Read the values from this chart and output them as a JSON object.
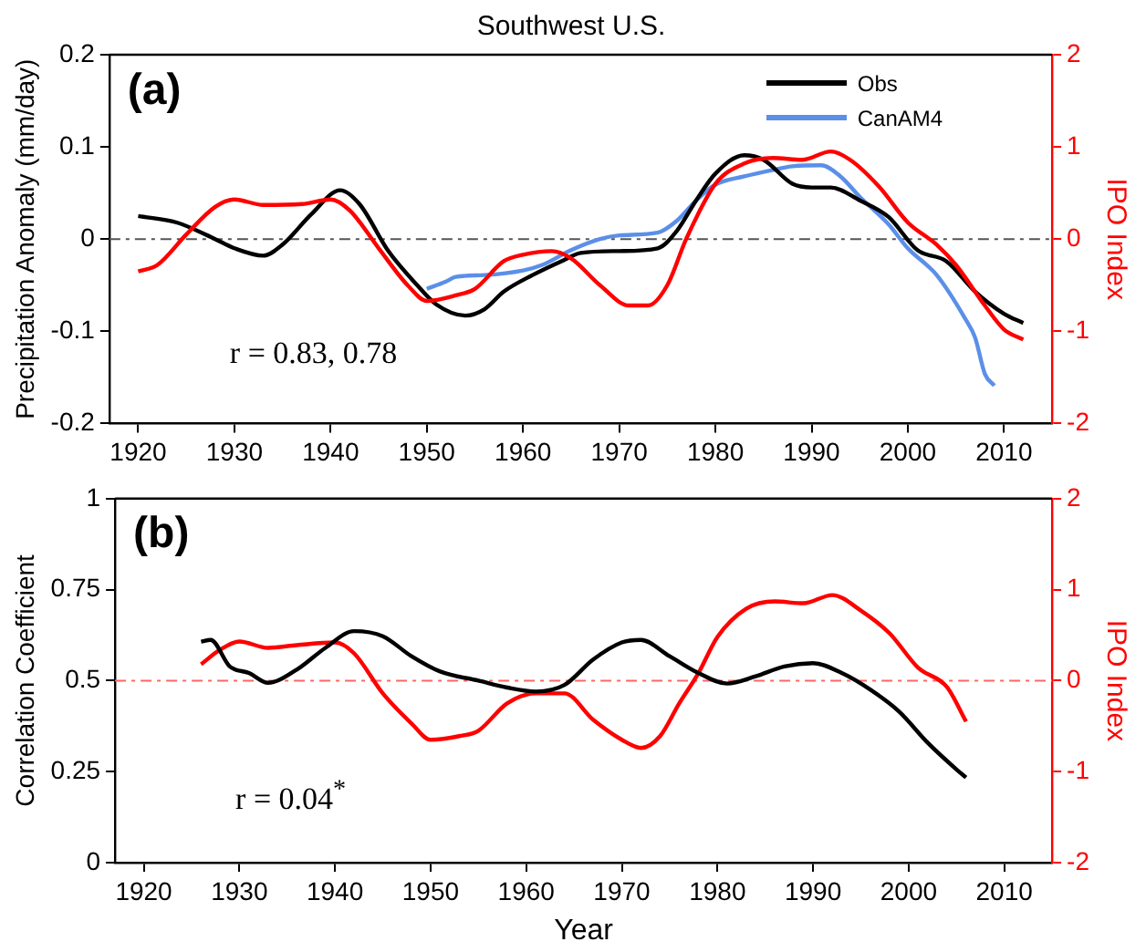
{
  "chart_data": [
    {
      "type": "line",
      "title": "Southwest U.S.",
      "ylabel": "Precipitation Anomaly (mm/day)",
      "y2label": "IPO Index",
      "legend": "top right",
      "marker": "none",
      "xlim": [
        1917,
        2015
      ],
      "xticks": [
        1920,
        1930,
        1940,
        1950,
        1960,
        1970,
        1980,
        1990,
        2000,
        2010
      ],
      "ylim": [
        -0.2,
        0.2
      ],
      "yticks": [
        -0.2,
        -0.1,
        0,
        0.1,
        0.2
      ],
      "y2lim": [
        -2,
        2
      ],
      "y2ticks": [
        -2,
        -1,
        0,
        1,
        2
      ],
      "ref_lines": [
        {
          "axis": "y",
          "value": 0,
          "color": "#555555",
          "line_style": "dashed"
        }
      ],
      "annotations": [
        "(a)",
        "r = 0.83, 0.78"
      ],
      "series": [
        {
          "type": "line",
          "axis": "y2",
          "color": "#ff0000",
          "x": [
            1920,
            1922,
            1925,
            1928,
            1930,
            1933,
            1937,
            1940,
            1942,
            1945,
            1948,
            1950,
            1953,
            1955,
            1958,
            1960,
            1963,
            1965,
            1968,
            1971,
            1973,
            1975,
            1977,
            1980,
            1983,
            1986,
            1989,
            1992,
            1994,
            1997,
            2000,
            2003,
            2005,
            2008,
            2010,
            2012
          ],
          "values": [
            -0.35,
            -0.28,
            0.05,
            0.35,
            0.43,
            0.37,
            0.38,
            0.43,
            0.31,
            -0.1,
            -0.5,
            -0.67,
            -0.61,
            -0.54,
            -0.24,
            -0.17,
            -0.13,
            -0.21,
            -0.5,
            -0.72,
            -0.72,
            -0.5,
            0.01,
            0.6,
            0.82,
            0.88,
            0.86,
            0.95,
            0.86,
            0.57,
            0.18,
            -0.06,
            -0.28,
            -0.72,
            -0.98,
            -1.09
          ]
        },
        {
          "type": "line",
          "name": "Obs",
          "color": "#000000",
          "x": [
            1920,
            1924,
            1928,
            1930,
            1933,
            1935,
            1938,
            1941,
            1943,
            1946,
            1949,
            1951,
            1954,
            1956,
            1958,
            1961,
            1964,
            1966,
            1970,
            1974,
            1976,
            1978,
            1980,
            1983,
            1985,
            1988,
            1990,
            1992,
            1995,
            1998,
            2001,
            2004,
            2007,
            2010,
            2012
          ],
          "values": [
            0.025,
            0.018,
            0.0,
            -0.01,
            -0.018,
            -0.006,
            0.027,
            0.053,
            0.038,
            -0.013,
            -0.05,
            -0.071,
            -0.083,
            -0.076,
            -0.057,
            -0.039,
            -0.024,
            -0.015,
            -0.013,
            -0.01,
            0.009,
            0.042,
            0.071,
            0.091,
            0.086,
            0.06,
            0.056,
            0.056,
            0.042,
            0.024,
            -0.012,
            -0.024,
            -0.057,
            -0.081,
            -0.091
          ]
        },
        {
          "type": "line",
          "name": "CanAM4",
          "color": "#5b8fe8",
          "x": [
            1950,
            1952,
            1953,
            1956,
            1960,
            1962,
            1965,
            1968,
            1970,
            1974,
            1976,
            1978,
            1980,
            1983,
            1986,
            1988,
            1991,
            1993,
            1995,
            1998,
            2000,
            2003,
            2006,
            2007,
            2008,
            2009
          ],
          "values": [
            -0.054,
            -0.046,
            -0.041,
            -0.039,
            -0.034,
            -0.028,
            -0.012,
            0.0,
            0.004,
            0.007,
            0.02,
            0.042,
            0.059,
            0.068,
            0.075,
            0.079,
            0.08,
            0.068,
            0.046,
            0.016,
            -0.01,
            -0.039,
            -0.087,
            -0.107,
            -0.146,
            -0.159
          ]
        }
      ]
    },
    {
      "type": "line",
      "xlabel": "Year",
      "ylabel": "Correlation Coefficient",
      "y2label": "IPO Index",
      "marker": "none",
      "xlim": [
        1917,
        2015
      ],
      "xticks": [
        1920,
        1930,
        1940,
        1950,
        1960,
        1970,
        1980,
        1990,
        2000,
        2010
      ],
      "ylim": [
        0,
        1
      ],
      "yticks": [
        0,
        0.25,
        0.5,
        0.75,
        1
      ],
      "y2lim": [
        -2,
        2
      ],
      "y2ticks": [
        -2,
        -1,
        0,
        1,
        2
      ],
      "ref_lines": [
        {
          "axis": "y2",
          "value": 0,
          "color": "#ff6666",
          "line_style": "dashed"
        }
      ],
      "annotations": [
        "(b)",
        "r = 0.04$^{*}$"
      ],
      "series": [
        {
          "type": "line",
          "color": "#000000",
          "x": [
            1926,
            1927,
            1929,
            1931,
            1933,
            1936,
            1939,
            1942,
            1945,
            1948,
            1951,
            1955,
            1958,
            1961,
            1964,
            1967,
            1970,
            1972,
            1975,
            1978,
            1981,
            1984,
            1987,
            1990,
            1993,
            1996,
            1999,
            2002,
            2005,
            2006
          ],
          "values": [
            0.607,
            0.612,
            0.539,
            0.521,
            0.494,
            0.53,
            0.59,
            0.636,
            0.622,
            0.567,
            0.525,
            0.5,
            0.481,
            0.47,
            0.488,
            0.558,
            0.605,
            0.612,
            0.567,
            0.521,
            0.492,
            0.512,
            0.539,
            0.548,
            0.521,
            0.475,
            0.415,
            0.329,
            0.256,
            0.234
          ]
        },
        {
          "type": "line",
          "axis": "y2",
          "color": "#ff0000",
          "x": [
            1926,
            1928,
            1930,
            1933,
            1936,
            1940,
            1942,
            1945,
            1948,
            1950,
            1953,
            1955,
            1958,
            1961,
            1964,
            1967,
            1970,
            1972,
            1974,
            1976,
            1978,
            1980,
            1983,
            1986,
            1989,
            1992,
            1995,
            1998,
            2001,
            2004,
            2006
          ],
          "values": [
            0.18,
            0.34,
            0.43,
            0.36,
            0.39,
            0.42,
            0.3,
            -0.14,
            -0.47,
            -0.65,
            -0.61,
            -0.55,
            -0.25,
            -0.14,
            -0.14,
            -0.43,
            -0.65,
            -0.74,
            -0.61,
            -0.25,
            0.08,
            0.48,
            0.79,
            0.87,
            0.85,
            0.94,
            0.77,
            0.52,
            0.14,
            -0.07,
            -0.45
          ]
        }
      ]
    }
  ]
}
